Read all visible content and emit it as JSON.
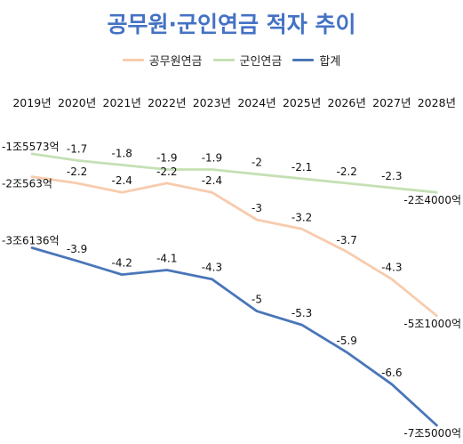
{
  "chart_data": {
    "type": "line",
    "title": "공무원·군인연금 적자 추이",
    "categories": [
      "2019년",
      "2020년",
      "2021년",
      "2022년",
      "2023년",
      "2024년",
      "2025년",
      "2026년",
      "2027년",
      "2028년"
    ],
    "series": [
      {
        "name": "공무원연금",
        "color": "#f8cbad",
        "values": [
          -2.0563,
          -2.2,
          -2.4,
          -2.2,
          -2.4,
          -3.0,
          -3.2,
          -3.7,
          -4.3,
          -5.1
        ],
        "labels": [
          "-2조563억",
          "-2.2",
          "-2.4",
          "-2.2",
          "-2.4",
          "-3",
          "-3.2",
          "-3.7",
          "-4.3",
          "-5조1000억"
        ]
      },
      {
        "name": "군인연금",
        "color": "#c5e0b4",
        "values": [
          -1.5573,
          -1.7,
          -1.8,
          -1.9,
          -1.9,
          -2.0,
          -2.1,
          -2.2,
          -2.3,
          -2.4
        ],
        "labels": [
          "-1조5573억",
          "-1.7",
          "-1.8",
          "-1.9",
          "-1.9",
          "-2",
          "-2.1",
          "-2.2",
          "-2.3",
          "-2조4000억"
        ]
      },
      {
        "name": "합계",
        "color": "#4a76b8",
        "values": [
          -3.6136,
          -3.9,
          -4.2,
          -4.1,
          -4.3,
          -5.0,
          -5.3,
          -5.9,
          -6.6,
          -7.5
        ],
        "labels": [
          "-3조6136억",
          "-3.9",
          "-4.2",
          "-4.1",
          "-4.3",
          "-5",
          "-5.3",
          "-5.9",
          "-6.6",
          "-7조5000억"
        ]
      }
    ],
    "legend_position": "top",
    "grid": false
  }
}
